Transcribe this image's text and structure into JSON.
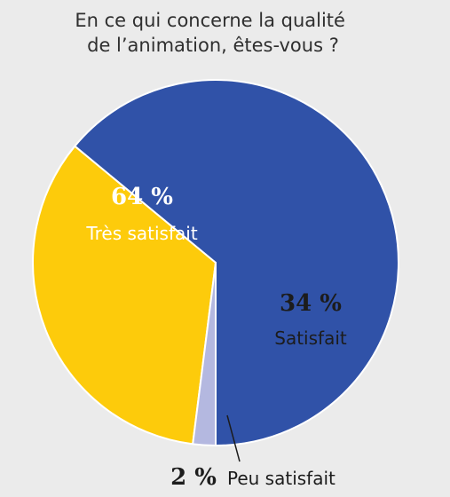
{
  "chart_data": {
    "type": "pie",
    "title": "En ce qui concerne la qualité de l’animation, êtes-vous ?",
    "title_lines": [
      "En ce qui concerne la qualité",
      "de l’animation, êtes-vous ?"
    ],
    "legend": "none",
    "slices": [
      {
        "label": "Très satisfait",
        "value": 64,
        "value_label": "64 %",
        "color": "#3052a8",
        "text_color": "#ffffff"
      },
      {
        "label": "Satisfait",
        "value": 34,
        "value_label": "34 %",
        "color": "#fdcb0b",
        "text_color": "#1c1c1c"
      },
      {
        "label": "Peu satisfait",
        "value": 2,
        "value_label": "2 %",
        "color": "#b4b8e0",
        "text_color": "#1c1c1c"
      }
    ]
  },
  "colors": {
    "background": "#ebebeb",
    "slice_border": "#ffffff",
    "leader_line": "#1c1c1c"
  }
}
